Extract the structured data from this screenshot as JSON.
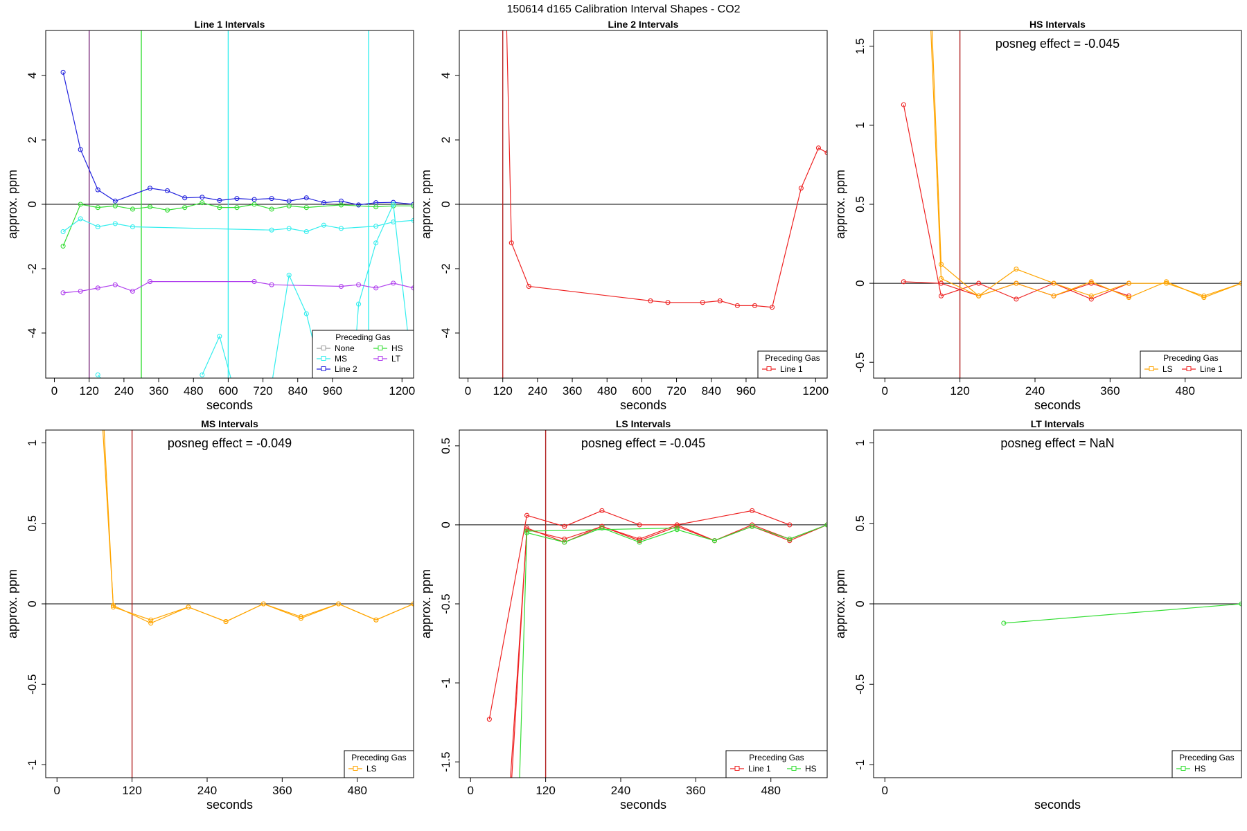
{
  "title": "150614  d165   Calibration Interval Shapes - CO2",
  "colors": {
    "None": "#999999",
    "HS": "#33dd33",
    "MS": "#33eeee",
    "LT": "#b040ee",
    "Line 2": "#2222dd",
    "Line 1": "#ee2222",
    "LS": "#ffa500",
    "vline_red": "#b22222",
    "vline_purple": "#7a2a7a"
  },
  "chart_data": [
    {
      "type": "line",
      "title": "Line 1 Intervals",
      "xlabel": "seconds",
      "ylabel": "approx. ppm",
      "xlim": [
        -30,
        1240
      ],
      "ylim": [
        -5.4,
        5.4
      ],
      "xticks": [
        0,
        120,
        240,
        360,
        480,
        600,
        720,
        840,
        960,
        1200
      ],
      "yticks": [
        -4,
        -2,
        0,
        2,
        4
      ],
      "vlines": [
        {
          "x": 120,
          "color": "#7a2a7a"
        },
        {
          "x": 300,
          "color": "#33dd33"
        },
        {
          "x": 600,
          "color": "#33eeee"
        },
        {
          "x": 1085,
          "color": "#33eeee"
        }
      ],
      "legend": {
        "title": "Preceding Gas",
        "position": "bottom-right",
        "columns": 2,
        "entries": [
          "None",
          "HS",
          "MS",
          "LT",
          "Line 2"
        ]
      },
      "series": [
        {
          "name": "Line 2",
          "x": [
            30,
            90,
            150,
            210,
            330,
            390,
            450,
            510,
            570,
            630,
            690,
            750,
            810,
            870,
            930,
            990,
            1050,
            1110,
            1170,
            1240
          ],
          "y": [
            4.1,
            1.7,
            0.45,
            0.1,
            0.5,
            0.42,
            0.2,
            0.22,
            0.12,
            0.18,
            0.15,
            0.18,
            0.1,
            0.2,
            0.05,
            0.1,
            -0.02,
            0.05,
            0.06,
            0.0
          ]
        },
        {
          "name": "HS",
          "x": [
            30,
            90,
            150,
            210,
            270,
            330,
            390,
            450,
            510,
            570,
            630,
            690,
            750,
            810,
            870,
            990,
            1110,
            1170,
            1240
          ],
          "y": [
            -1.3,
            0.0,
            -0.1,
            -0.05,
            -0.15,
            -0.08,
            -0.18,
            -0.1,
            0.05,
            -0.1,
            -0.1,
            0.0,
            -0.15,
            -0.05,
            -0.1,
            -0.02,
            -0.08,
            -0.05,
            -0.05
          ]
        },
        {
          "name": "MS",
          "x": [
            30,
            90,
            150,
            210,
            270,
            750,
            810,
            870,
            930,
            990,
            1110,
            1170,
            1240
          ],
          "y": [
            -0.85,
            -0.45,
            -0.7,
            -0.6,
            -0.7,
            -0.8,
            -0.75,
            -0.85,
            -0.65,
            -0.75,
            -0.68,
            -0.55,
            -0.5
          ]
        },
        {
          "name": "MS",
          "x": [
            150,
            180
          ],
          "y": [
            -5.3,
            -5.6
          ]
        },
        {
          "name": "MS",
          "x": [
            510,
            570,
            615
          ],
          "y": [
            -5.3,
            -4.1,
            -5.6
          ]
        },
        {
          "name": "MS",
          "x": [
            750,
            810,
            870,
            930
          ],
          "y": [
            -5.6,
            -2.2,
            -3.4,
            -5.6
          ]
        },
        {
          "name": "MS",
          "x": [
            1030,
            1050,
            1110,
            1170,
            1220
          ],
          "y": [
            -5.6,
            -3.1,
            -1.2,
            0.0,
            -4.0
          ]
        },
        {
          "name": "LT",
          "x": [
            30,
            90,
            150,
            210,
            270,
            330,
            690,
            750,
            990,
            1050,
            1110,
            1170,
            1240
          ],
          "y": [
            -2.75,
            -2.7,
            -2.6,
            -2.5,
            -2.7,
            -2.4,
            -2.4,
            -2.5,
            -2.55,
            -2.5,
            -2.6,
            -2.45,
            -2.6
          ]
        }
      ]
    },
    {
      "type": "line",
      "title": "Line 2 Intervals",
      "xlabel": "seconds",
      "ylabel": "approx. ppm",
      "xlim": [
        -30,
        1240
      ],
      "ylim": [
        -5.4,
        5.4
      ],
      "xticks": [
        0,
        120,
        240,
        360,
        480,
        600,
        720,
        840,
        960,
        1200
      ],
      "yticks": [
        -4,
        -2,
        0,
        2,
        4
      ],
      "vlines": [
        {
          "x": 120,
          "color": "#b22222"
        }
      ],
      "legend": {
        "title": "Preceding Gas",
        "position": "bottom-right",
        "columns": 1,
        "entries": [
          "Line 1"
        ]
      },
      "series": [
        {
          "name": "Line 1",
          "x": [
            133,
            150,
            210,
            630,
            690,
            810,
            870,
            930,
            990,
            1050,
            1150,
            1210,
            1240
          ],
          "y": [
            5.6,
            -1.2,
            -2.55,
            -3.0,
            -3.05,
            -3.05,
            -3.0,
            -3.15,
            -3.15,
            -3.2,
            0.5,
            1.75,
            1.6
          ]
        }
      ]
    },
    {
      "type": "line",
      "title": "HS Intervals",
      "xlabel": "seconds",
      "ylabel": "approx. ppm",
      "xlim": [
        -18,
        570
      ],
      "ylim": [
        -0.6,
        1.6
      ],
      "xticks": [
        0,
        120,
        240,
        360,
        480
      ],
      "yticks": [
        -0.5,
        0.0,
        0.5,
        1.0,
        1.5
      ],
      "vlines": [
        {
          "x": 120,
          "color": "#b22222"
        }
      ],
      "annotation": "posneg effect = -0.045",
      "legend": {
        "title": "Preceding Gas",
        "position": "bottom-right",
        "columns": 2,
        "entries": [
          "LS",
          "Line 1"
        ]
      },
      "series": [
        {
          "name": "Line 1",
          "x": [
            30,
            90,
            150,
            210,
            270,
            330,
            390
          ],
          "y": [
            1.13,
            -0.08,
            0.0,
            -0.1,
            0.0,
            -0.1,
            0.0
          ]
        },
        {
          "name": "Line 1",
          "x": [
            30,
            90,
            150,
            210,
            270,
            330,
            390
          ],
          "y": [
            0.01,
            0.0,
            -0.08,
            0.0,
            -0.08,
            0.0,
            -0.08
          ]
        },
        {
          "name": "LS",
          "x": [
            75,
            90,
            150,
            210,
            270,
            330,
            390,
            450,
            510,
            570
          ],
          "y": [
            1.65,
            0.12,
            -0.08,
            0.09,
            0.0,
            -0.08,
            0.0,
            0.0,
            -0.08,
            0.0
          ]
        },
        {
          "name": "LS",
          "x": [
            73,
            90,
            150,
            210,
            270,
            330,
            390,
            450,
            510,
            570
          ],
          "y": [
            1.65,
            0.03,
            -0.08,
            0.0,
            -0.08,
            0.01,
            -0.09,
            0.01,
            -0.09,
            0.0
          ]
        }
      ]
    },
    {
      "type": "line",
      "title": "MS Intervals",
      "xlabel": "seconds",
      "ylabel": "approx. ppm",
      "xlim": [
        -18,
        570
      ],
      "ylim": [
        -1.08,
        1.08
      ],
      "xticks": [
        0,
        120,
        240,
        360,
        480
      ],
      "yticks": [
        -1.0,
        -0.5,
        0.0,
        0.5,
        1.0
      ],
      "vlines": [
        {
          "x": 120,
          "color": "#b22222"
        }
      ],
      "annotation": "posneg effect = -0.049",
      "legend": {
        "title": "Preceding Gas",
        "position": "bottom-right",
        "columns": 1,
        "entries": [
          "LS"
        ]
      },
      "series": [
        {
          "name": "LS",
          "x": [
            73,
            90,
            150,
            210,
            270,
            330,
            390,
            450,
            510,
            570
          ],
          "y": [
            1.1,
            -0.01,
            -0.12,
            -0.02,
            -0.11,
            0.0,
            -0.09,
            0.0,
            -0.1,
            0.0
          ]
        },
        {
          "name": "LS",
          "x": [
            75,
            90,
            150,
            210,
            270,
            330,
            390,
            450,
            510,
            570
          ],
          "y": [
            1.1,
            -0.02,
            -0.1,
            -0.02,
            -0.11,
            0.0,
            -0.08,
            0.0,
            -0.1,
            0.0
          ]
        }
      ]
    },
    {
      "type": "line",
      "title": "LS Intervals",
      "xlabel": "seconds",
      "ylabel": "approx. ppm",
      "xlim": [
        -18,
        570
      ],
      "ylim": [
        -1.6,
        0.6
      ],
      "xticks": [
        0,
        120,
        240,
        360,
        480
      ],
      "yticks": [
        -1.5,
        -1.0,
        -0.5,
        0.0,
        0.5
      ],
      "vlines": [
        {
          "x": 120,
          "color": "#b22222"
        }
      ],
      "annotation": "posneg effect = -0.045",
      "legend": {
        "title": "Preceding Gas",
        "position": "bottom-right",
        "columns": 2,
        "entries": [
          "Line 1",
          "HS"
        ]
      },
      "series": [
        {
          "name": "Line 1",
          "x": [
            30,
            90,
            150,
            210,
            270,
            330,
            450,
            510
          ],
          "y": [
            -1.23,
            0.06,
            -0.01,
            0.09,
            0.0,
            0.0,
            0.09,
            0.0
          ]
        },
        {
          "name": "Line 1",
          "x": [
            63,
            90,
            150,
            210,
            270,
            330,
            390,
            450,
            510,
            570
          ],
          "y": [
            -1.65,
            -0.03,
            -0.09,
            -0.01,
            -0.09,
            0.0,
            -0.1,
            0.0,
            -0.09,
            0.0
          ]
        },
        {
          "name": "Line 1",
          "x": [
            65,
            90,
            150,
            210,
            270,
            330,
            390,
            450,
            510,
            570
          ],
          "y": [
            -1.65,
            -0.02,
            -0.11,
            -0.01,
            -0.1,
            -0.01,
            -0.1,
            -0.01,
            -0.1,
            0.0
          ]
        },
        {
          "name": "HS",
          "x": [
            78,
            90,
            150,
            210,
            270,
            330,
            390,
            450,
            510,
            570
          ],
          "y": [
            -1.65,
            -0.05,
            -0.11,
            -0.02,
            -0.11,
            -0.03,
            -0.1,
            -0.01,
            -0.09,
            0.0
          ]
        },
        {
          "name": "HS",
          "x": [
            90,
            330
          ],
          "y": [
            -0.04,
            -0.02
          ]
        }
      ]
    },
    {
      "type": "line",
      "title": "LT Intervals",
      "xlabel": "seconds",
      "ylabel": "approx. ppm",
      "xlim": [
        -18,
        570
      ],
      "ylim": [
        -1.08,
        1.08
      ],
      "xticks": [
        0
      ],
      "yticks": [
        -1.0,
        -0.5,
        0.0,
        0.5,
        1.0
      ],
      "vlines": [],
      "annotation": "posneg effect = NaN",
      "legend": {
        "title": "Preceding Gas",
        "position": "bottom-right",
        "columns": 1,
        "entries": [
          "HS"
        ]
      },
      "series": [
        {
          "name": "HS",
          "x": [
            190,
            570
          ],
          "y": [
            -0.12,
            0.0
          ]
        }
      ]
    }
  ]
}
